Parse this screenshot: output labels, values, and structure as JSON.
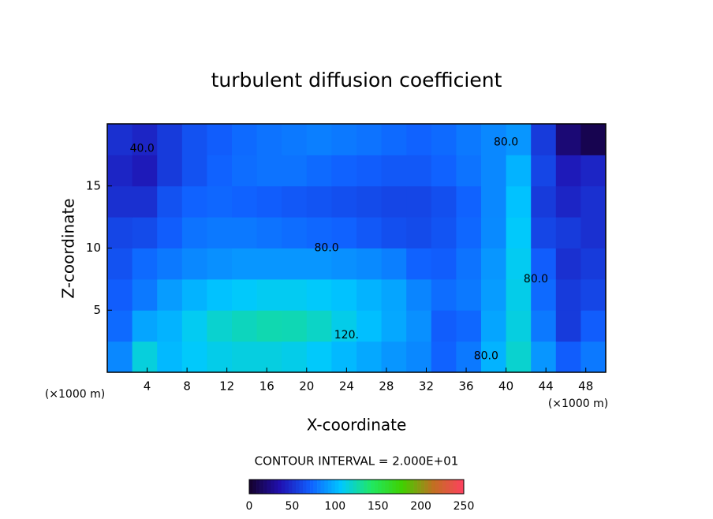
{
  "chart_data": {
    "type": "contour",
    "title": "turbulent diffusion coefficient",
    "x_label": "X-coordinate",
    "y_label": "Z-coordinate",
    "x_units": "(×1000 m)",
    "y_units": "(×1000 m)",
    "annotation": "CONTOUR INTERVAL = 2.000E+01",
    "xlim": [
      0,
      50
    ],
    "ylim": [
      0,
      20
    ],
    "xticks": [
      4,
      8,
      12,
      16,
      20,
      24,
      28,
      32,
      36,
      40,
      44,
      48
    ],
    "yticks": [
      5,
      10,
      15
    ],
    "x": [
      1.25,
      3.75,
      6.25,
      8.75,
      11.25,
      13.75,
      16.25,
      18.75,
      21.25,
      23.75,
      26.25,
      28.75,
      31.25,
      33.75,
      36.25,
      38.75,
      41.25,
      43.75,
      46.25,
      48.75
    ],
    "y": [
      1.25,
      3.75,
      6.25,
      8.75,
      11.25,
      13.75,
      16.25,
      18.75
    ],
    "z": [
      [
        85,
        115,
        102,
        108,
        112,
        114,
        114,
        112,
        108,
        102,
        96,
        90,
        85,
        72,
        80,
        100,
        118,
        90,
        70,
        80
      ],
      [
        75,
        95,
        100,
        110,
        118,
        122,
        125,
        124,
        120,
        112,
        104,
        96,
        88,
        70,
        74,
        95,
        114,
        80,
        55,
        70
      ],
      [
        70,
        80,
        92,
        100,
        105,
        108,
        110,
        110,
        108,
        105,
        100,
        95,
        84,
        76,
        80,
        92,
        112,
        75,
        55,
        60
      ],
      [
        65,
        75,
        80,
        85,
        88,
        90,
        90,
        90,
        90,
        88,
        86,
        82,
        72,
        70,
        78,
        90,
        110,
        70,
        50,
        55
      ],
      [
        60,
        62,
        70,
        78,
        80,
        80,
        78,
        76,
        74,
        72,
        68,
        64,
        62,
        66,
        74,
        86,
        108,
        60,
        55,
        50
      ],
      [
        50,
        50,
        65,
        72,
        74,
        72,
        70,
        68,
        66,
        64,
        62,
        60,
        60,
        64,
        72,
        85,
        105,
        55,
        45,
        50
      ],
      [
        45,
        40,
        55,
        65,
        72,
        76,
        78,
        78,
        75,
        72,
        70,
        68,
        68,
        72,
        78,
        85,
        100,
        60,
        40,
        45
      ],
      [
        50,
        45,
        55,
        65,
        70,
        75,
        78,
        80,
        82,
        80,
        78,
        75,
        72,
        75,
        80,
        85,
        90,
        55,
        20,
        10
      ]
    ],
    "contour_labels": [
      {
        "value": 40,
        "label": "40.0",
        "x": 3.5,
        "y": 18
      },
      {
        "value": 80,
        "label": "80.0",
        "x": 40,
        "y": 18.5
      },
      {
        "value": 80,
        "label": "80.0",
        "x": 22,
        "y": 10
      },
      {
        "value": 120,
        "label": "120.",
        "x": 24,
        "y": 3
      },
      {
        "value": 80,
        "label": "80.0",
        "x": 38,
        "y": 1.3
      },
      {
        "value": 80,
        "label": "80.0",
        "x": 43,
        "y": 7.5
      }
    ],
    "colorbar_lim": [
      0,
      250
    ],
    "colorbar_ticks": [
      0,
      50,
      100,
      150,
      200,
      250
    ],
    "colormap": [
      "#14002a",
      "#2010b0",
      "#1060ff",
      "#00c8ff",
      "#20e860",
      "#40d000",
      "#c07020",
      "#ff4060"
    ]
  }
}
